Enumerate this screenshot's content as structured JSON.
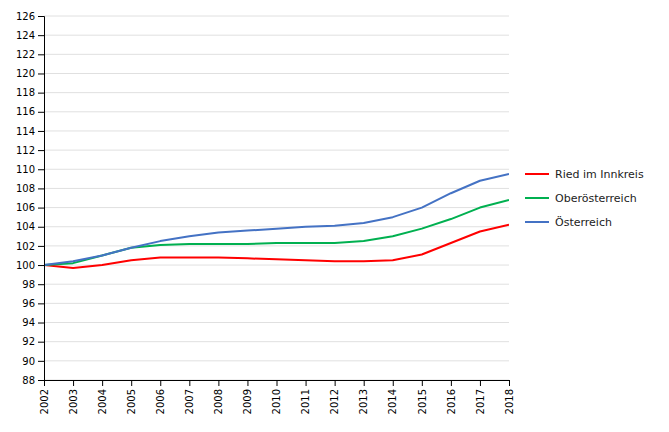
{
  "chart_data": {
    "type": "line",
    "x": [
      2002,
      2003,
      2004,
      2005,
      2006,
      2007,
      2008,
      2009,
      2010,
      2011,
      2012,
      2013,
      2014,
      2015,
      2016,
      2017,
      2018
    ],
    "series": [
      {
        "name": "Ried im Innkreis",
        "color": "#ff0000",
        "values": [
          100.0,
          99.7,
          100.0,
          100.5,
          100.8,
          100.8,
          100.8,
          100.7,
          100.6,
          100.5,
          100.4,
          100.4,
          100.5,
          101.1,
          102.3,
          103.5,
          104.2
        ]
      },
      {
        "name": "Oberösterreich",
        "color": "#00b050",
        "values": [
          100.0,
          100.2,
          101.0,
          101.8,
          102.1,
          102.2,
          102.2,
          102.2,
          102.3,
          102.3,
          102.3,
          102.5,
          103.0,
          103.8,
          104.8,
          106.0,
          106.8
        ]
      },
      {
        "name": "Österreich",
        "color": "#4472c4",
        "values": [
          100.0,
          100.4,
          101.0,
          101.8,
          102.5,
          103.0,
          103.4,
          103.6,
          103.8,
          104.0,
          104.1,
          104.4,
          105.0,
          106.0,
          107.5,
          108.8,
          109.5
        ]
      }
    ],
    "xlim": [
      2002,
      2018
    ],
    "xticks": [
      2002,
      2003,
      2004,
      2005,
      2006,
      2007,
      2008,
      2009,
      2010,
      2011,
      2012,
      2013,
      2014,
      2015,
      2016,
      2017,
      2018
    ],
    "ylim": [
      88,
      126
    ],
    "yticks": [
      88,
      90,
      92,
      94,
      96,
      98,
      100,
      102,
      104,
      106,
      108,
      110,
      112,
      114,
      116,
      118,
      120,
      122,
      124,
      126
    ],
    "grid": true,
    "legend": "right"
  }
}
